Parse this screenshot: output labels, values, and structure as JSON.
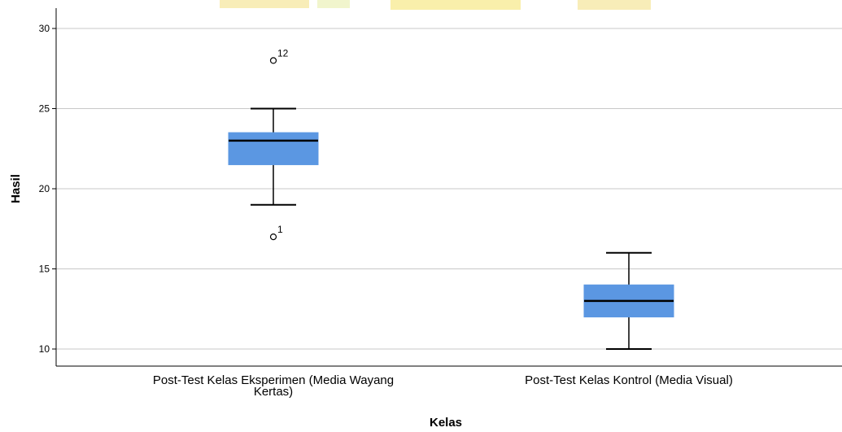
{
  "chart_data": {
    "type": "boxplot",
    "xlabel": "Kelas",
    "ylabel": "Hasil",
    "ylim": [
      9,
      31
    ],
    "yticks": [
      10,
      15,
      20,
      25,
      30
    ],
    "grid": true,
    "box_color": "#5b97e2",
    "categories": [
      {
        "label_lines": [
          "Post-Test Kelas Eksperimen (Media Wayang",
          "Kertas)"
        ],
        "min": 19,
        "q1": 21.5,
        "median": 23,
        "q3": 23.5,
        "max": 25,
        "outliers": [
          {
            "value": 28,
            "label": "12"
          },
          {
            "value": 17,
            "label": "1"
          }
        ]
      },
      {
        "label_lines": [
          "Post-Test Kelas Kontrol (Media Visual)"
        ],
        "min": 10,
        "q1": 12,
        "median": 13,
        "q3": 14,
        "max": 16,
        "outliers": []
      }
    ]
  }
}
